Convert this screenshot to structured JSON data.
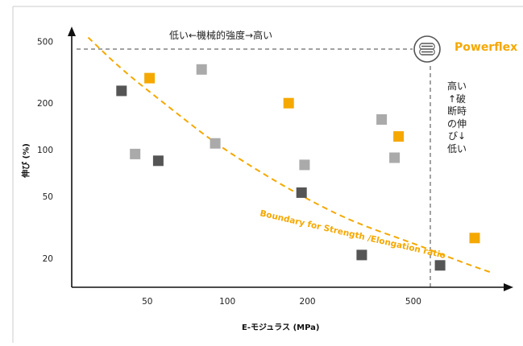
{
  "chart_data": {
    "type": "scatter",
    "xlabel": "E-モジュラス (MPa)",
    "ylabel": "伸び (%)",
    "x_scale": "log",
    "y_scale": "log",
    "xlim": [
      26,
      1100
    ],
    "ylim": [
      13,
      560
    ],
    "x_ticks": [
      "50",
      "100",
      "200",
      "500"
    ],
    "y_ticks": [
      "20",
      "50",
      "100",
      "200",
      "500"
    ],
    "top_annotation": "低い←機械的強度→高い",
    "right_annotation": "高い↑破断時の伸び↓低い",
    "boundary_label": "Boundary for Strength /Elongation ratio",
    "brand_label": "Powerflex",
    "series": [
      {
        "color": "#f5a800",
        "points": [
          [
            51,
            290
          ],
          [
            170,
            200
          ],
          [
            440,
            122
          ],
          [
            850,
            27
          ]
        ]
      },
      {
        "color": "#aaaaaa",
        "points": [
          [
            80,
            330
          ],
          [
            90,
            110
          ],
          [
            45,
            94
          ],
          [
            195,
            80
          ],
          [
            380,
            157
          ],
          [
            425,
            89
          ]
        ]
      },
      {
        "color": "#555555",
        "points": [
          [
            40,
            240
          ],
          [
            55,
            85
          ],
          [
            190,
            53
          ],
          [
            320,
            21
          ],
          [
            630,
            18
          ]
        ]
      }
    ],
    "boundary_curve": [
      [
        30,
        530
      ],
      [
        40,
        330
      ],
      [
        60,
        190
      ],
      [
        90,
        110
      ],
      [
        140,
        68
      ],
      [
        200,
        48
      ],
      [
        300,
        34
      ],
      [
        500,
        25
      ],
      [
        750,
        19
      ],
      [
        1000,
        16
      ]
    ],
    "colors": {
      "accent": "#f5a800",
      "axis": "#111111",
      "guide": "#444444"
    },
    "icon": "coil-spring-icon"
  }
}
